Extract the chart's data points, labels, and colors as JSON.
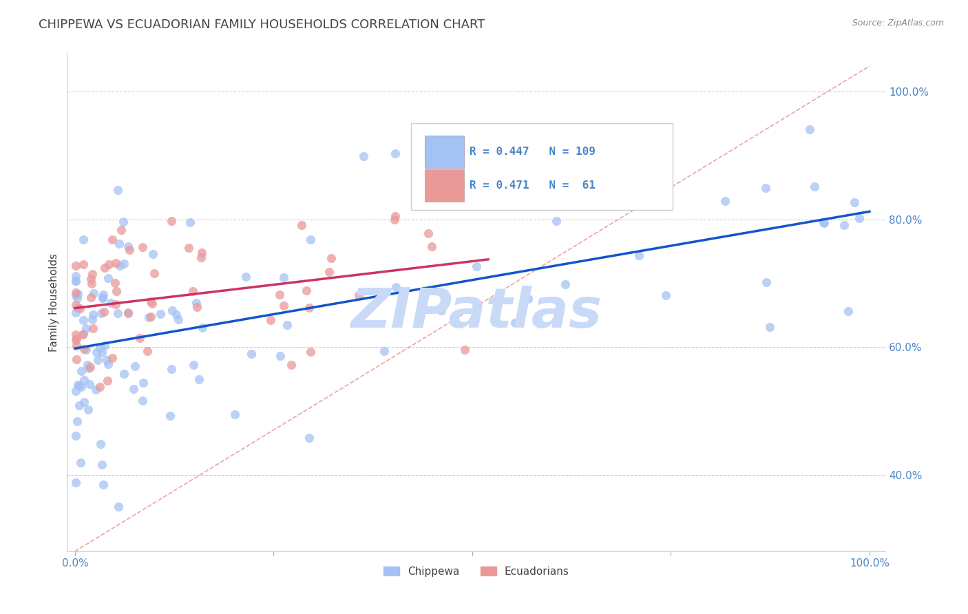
{
  "title": "CHIPPEWA VS ECUADORIAN FAMILY HOUSEHOLDS CORRELATION CHART",
  "source_text": "Source: ZipAtlas.com",
  "ylabel": "Family Households",
  "chippewa_R": 0.447,
  "chippewa_N": 109,
  "ecuadorian_R": 0.471,
  "ecuadorian_N": 61,
  "chippewa_color": "#a4c2f4",
  "ecuadorian_color": "#ea9999",
  "chippewa_line_color": "#1155cc",
  "ecuadorian_line_color": "#cc3366",
  "dashed_line_color": "#e06666",
  "watermark_color": "#c9daf8",
  "background_color": "#ffffff",
  "legend_label_1": "Chippewa",
  "legend_label_2": "Ecuadorians",
  "title_color": "#434343",
  "axis_label_color": "#434343",
  "tick_color": "#4a86c8",
  "grid_color": "#cccccc",
  "xlim": [
    0.0,
    1.0
  ],
  "ylim": [
    0.28,
    1.06
  ],
  "y_ticks": [
    0.4,
    0.6,
    0.8,
    1.0
  ],
  "x_ticks": [
    0.0,
    1.0
  ]
}
